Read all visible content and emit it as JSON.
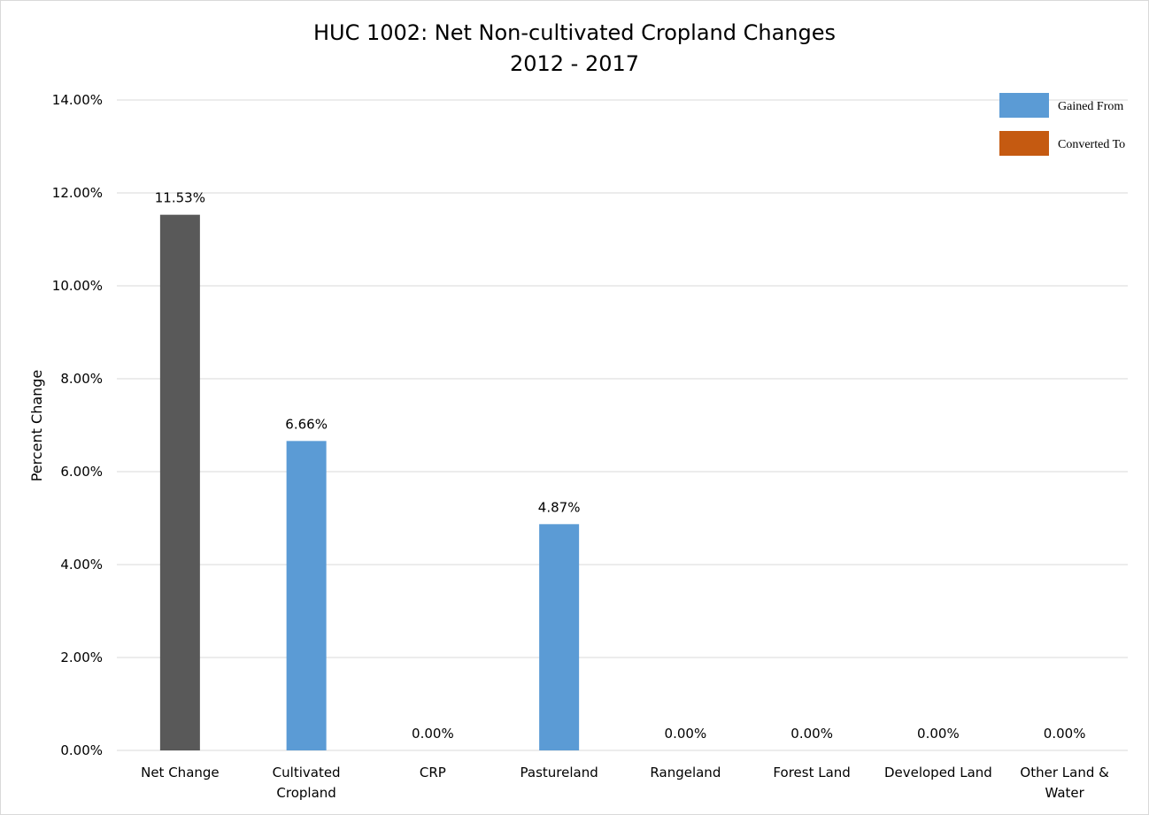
{
  "chart_data": {
    "type": "bar",
    "title": "HUC 1002: Net Non-cultivated Cropland Changes",
    "subtitle": "2012 - 2017",
    "ylabel": "Percent Change",
    "xlabel": "",
    "ylim": [
      0,
      14
    ],
    "yticks": [
      "0.00%",
      "2.00%",
      "4.00%",
      "6.00%",
      "8.00%",
      "10.00%",
      "12.00%",
      "14.00%"
    ],
    "grid": true,
    "legend_position": "top-right",
    "categories": [
      [
        "Net Change"
      ],
      [
        "Cultivated",
        "Cropland"
      ],
      [
        "CRP"
      ],
      [
        "Pastureland"
      ],
      [
        "Rangeland"
      ],
      [
        "Forest Land"
      ],
      [
        "Developed Land"
      ],
      [
        "Other Land &",
        "Water"
      ]
    ],
    "values": [
      11.53,
      6.66,
      0.0,
      4.87,
      0.0,
      0.0,
      0.0,
      0.0
    ],
    "data_labels": [
      "11.53%",
      "6.66%",
      "0.00%",
      "4.87%",
      "0.00%",
      "0.00%",
      "0.00%",
      "0.00%"
    ],
    "bar_colors": [
      "#595959",
      "#5b9bd5",
      "#5b9bd5",
      "#5b9bd5",
      "#5b9bd5",
      "#5b9bd5",
      "#5b9bd5",
      "#5b9bd5"
    ],
    "legend": [
      {
        "name": "Gained From",
        "color": "#5b9bd5"
      },
      {
        "name": "Converted To",
        "color": "#c55a11"
      }
    ],
    "grid_color": "#d9d9d9"
  }
}
